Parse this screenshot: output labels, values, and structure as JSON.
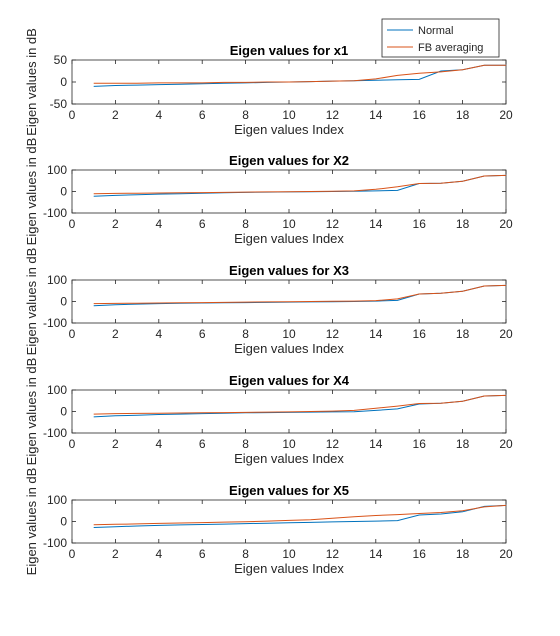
{
  "figure": {
    "legend": {
      "placement": "top-right",
      "entries": [
        {
          "label": "Normal",
          "color": "#0072BD"
        },
        {
          "label": "FB averaging",
          "color": "#D95319"
        }
      ]
    }
  },
  "chart_data": [
    {
      "type": "line",
      "title": "Eigen values for x1",
      "xlabel": "Eigen values Index",
      "ylabel": "Eigen values in dB",
      "xlim": [
        0,
        20
      ],
      "ylim": [
        -50,
        50
      ],
      "xticks": [
        0,
        2,
        4,
        6,
        8,
        10,
        12,
        14,
        16,
        18,
        20
      ],
      "yticks": [
        -50,
        0,
        50
      ],
      "x": [
        1,
        2,
        3,
        4,
        5,
        6,
        7,
        8,
        9,
        10,
        11,
        12,
        13,
        14,
        15,
        16,
        17,
        18,
        19,
        20
      ],
      "series": [
        {
          "name": "Normal",
          "color": "#0072BD",
          "values": [
            -10,
            -8,
            -7,
            -6,
            -5,
            -4,
            -3,
            -2,
            -1,
            0,
            1,
            2,
            3,
            4,
            5,
            6,
            25,
            28,
            38,
            38
          ]
        },
        {
          "name": "FB averaging",
          "color": "#D95319",
          "values": [
            -3,
            -3,
            -3,
            -2,
            -2,
            -2,
            -1,
            -1,
            0,
            0,
            1,
            2,
            3,
            7,
            15,
            20,
            23,
            28,
            38,
            38
          ]
        }
      ]
    },
    {
      "type": "line",
      "title": "Eigen values for X2",
      "xlabel": "Eigen values Index",
      "ylabel": "Eigen values in dB",
      "xlim": [
        0,
        20
      ],
      "ylim": [
        -100,
        100
      ],
      "xticks": [
        0,
        2,
        4,
        6,
        8,
        10,
        12,
        14,
        16,
        18,
        20
      ],
      "yticks": [
        -100,
        0,
        100
      ],
      "x": [
        1,
        2,
        3,
        4,
        5,
        6,
        7,
        8,
        9,
        10,
        11,
        12,
        13,
        14,
        15,
        16,
        17,
        18,
        19,
        20
      ],
      "series": [
        {
          "name": "Normal",
          "color": "#0072BD",
          "values": [
            -22,
            -18,
            -15,
            -12,
            -10,
            -8,
            -6,
            -4,
            -3,
            -2,
            -1,
            0,
            1,
            3,
            5,
            37,
            38,
            48,
            72,
            75
          ]
        },
        {
          "name": "FB averaging",
          "color": "#D95319",
          "values": [
            -10,
            -9,
            -8,
            -7,
            -6,
            -5,
            -4,
            -3,
            -2,
            -1,
            0,
            1,
            3,
            10,
            22,
            37,
            38,
            48,
            72,
            75
          ]
        }
      ]
    },
    {
      "type": "line",
      "title": "Eigen values for X3",
      "xlabel": "Eigen values Index",
      "ylabel": "Eigen values in dB",
      "xlim": [
        0,
        20
      ],
      "ylim": [
        -100,
        100
      ],
      "xticks": [
        0,
        2,
        4,
        6,
        8,
        10,
        12,
        14,
        16,
        18,
        20
      ],
      "yticks": [
        -100,
        0,
        100
      ],
      "x": [
        1,
        2,
        3,
        4,
        5,
        6,
        7,
        8,
        9,
        10,
        11,
        12,
        13,
        14,
        15,
        16,
        17,
        18,
        19,
        20
      ],
      "series": [
        {
          "name": "Normal",
          "color": "#0072BD",
          "values": [
            -20,
            -15,
            -12,
            -10,
            -8,
            -7,
            -6,
            -5,
            -4,
            -3,
            -2,
            -1,
            0,
            2,
            5,
            35,
            38,
            48,
            72,
            75
          ]
        },
        {
          "name": "FB averaging",
          "color": "#D95319",
          "values": [
            -10,
            -9,
            -8,
            -7,
            -6,
            -5,
            -4,
            -3,
            -2,
            -1,
            0,
            1,
            2,
            4,
            12,
            35,
            38,
            48,
            72,
            75
          ]
        }
      ]
    },
    {
      "type": "line",
      "title": "Eigen values for X4",
      "xlabel": "Eigen values Index",
      "ylabel": "Eigen values in dB",
      "xlim": [
        0,
        20
      ],
      "ylim": [
        -100,
        100
      ],
      "xticks": [
        0,
        2,
        4,
        6,
        8,
        10,
        12,
        14,
        16,
        18,
        20
      ],
      "yticks": [
        -100,
        0,
        100
      ],
      "x": [
        1,
        2,
        3,
        4,
        5,
        6,
        7,
        8,
        9,
        10,
        11,
        12,
        13,
        14,
        15,
        16,
        17,
        18,
        19,
        20
      ],
      "series": [
        {
          "name": "Normal",
          "color": "#0072BD",
          "values": [
            -25,
            -20,
            -17,
            -14,
            -12,
            -10,
            -8,
            -6,
            -5,
            -4,
            -3,
            -2,
            -1,
            5,
            12,
            35,
            38,
            48,
            72,
            75
          ]
        },
        {
          "name": "FB averaging",
          "color": "#D95319",
          "values": [
            -12,
            -10,
            -9,
            -8,
            -7,
            -6,
            -5,
            -4,
            -3,
            -2,
            0,
            2,
            5,
            15,
            25,
            37,
            38,
            48,
            72,
            75
          ]
        }
      ]
    },
    {
      "type": "line",
      "title": "Eigen values for X5",
      "xlabel": "Eigen values Index",
      "ylabel": "Eigen values in dB",
      "xlim": [
        0,
        20
      ],
      "ylim": [
        -100,
        100
      ],
      "xticks": [
        0,
        2,
        4,
        6,
        8,
        10,
        12,
        14,
        16,
        18,
        20
      ],
      "yticks": [
        -100,
        0,
        100
      ],
      "x": [
        1,
        2,
        3,
        4,
        5,
        6,
        7,
        8,
        9,
        10,
        11,
        12,
        13,
        14,
        15,
        16,
        17,
        18,
        19,
        20
      ],
      "series": [
        {
          "name": "Normal",
          "color": "#0072BD",
          "values": [
            -28,
            -24,
            -21,
            -18,
            -16,
            -14,
            -12,
            -10,
            -8,
            -6,
            -4,
            -2,
            0,
            2,
            4,
            30,
            35,
            45,
            70,
            75
          ]
        },
        {
          "name": "FB averaging",
          "color": "#D95319",
          "values": [
            -15,
            -13,
            -11,
            -9,
            -7,
            -5,
            -3,
            -1,
            2,
            5,
            8,
            15,
            22,
            28,
            32,
            37,
            42,
            50,
            68,
            75
          ]
        }
      ]
    }
  ]
}
